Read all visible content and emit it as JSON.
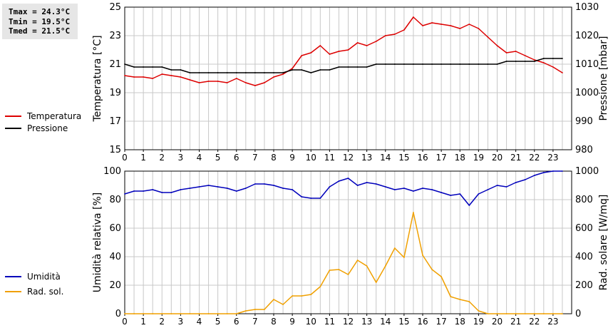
{
  "stats": {
    "tmax": "Tmax = 24.3°C",
    "tmin": "Tmin = 19.5°C",
    "tmed": "Tmed = 21.5°C"
  },
  "colors": {
    "temperatura": "#dd0000",
    "pressione": "#000000",
    "umidita": "#0000bb",
    "radsol": "#f0a000",
    "grid": "#c8c8c8"
  },
  "legend_top": [
    {
      "label": "Temperatura",
      "color": "#dd0000"
    },
    {
      "label": "Pressione",
      "color": "#000000"
    }
  ],
  "legend_bottom": [
    {
      "label": "Umidità",
      "color": "#0000bb"
    },
    {
      "label": "Rad. sol.",
      "color": "#f0a000"
    }
  ],
  "chart_data": [
    {
      "type": "line",
      "x_ticks": [
        "0",
        "1",
        "2",
        "3",
        "4",
        "5",
        "6",
        "7",
        "8",
        "9",
        "10",
        "11",
        "12",
        "13",
        "14",
        "15",
        "16",
        "17",
        "18",
        "19",
        "20",
        "21",
        "22",
        "23"
      ],
      "xlim": [
        0,
        24
      ],
      "y_left": {
        "label": "Temperatura [°C]",
        "ylim": [
          15,
          25
        ],
        "ticks": [
          "15",
          "17",
          "19",
          "21",
          "23",
          "25"
        ]
      },
      "y_right": {
        "label": "Pressione [mbar]",
        "ylim": [
          980,
          1030
        ],
        "ticks": [
          "980",
          "990",
          "1000",
          "1010",
          "1020",
          "1030"
        ]
      },
      "grid": true,
      "series": [
        {
          "name": "Temperatura",
          "axis": "left",
          "color": "#dd0000",
          "x": [
            0,
            0.5,
            1,
            1.5,
            2,
            2.5,
            3,
            3.5,
            4,
            4.5,
            5,
            5.5,
            6,
            6.5,
            7,
            7.5,
            8,
            8.5,
            9,
            9.5,
            10,
            10.5,
            11,
            11.5,
            12,
            12.5,
            13,
            13.5,
            14,
            14.5,
            15,
            15.5,
            16,
            16.5,
            17,
            17.5,
            18,
            18.5,
            19,
            19.5,
            20,
            20.5,
            21,
            21.5,
            22,
            22.5,
            23,
            23.5
          ],
          "y": [
            20.2,
            20.1,
            20.1,
            20.0,
            20.3,
            20.2,
            20.1,
            19.9,
            19.7,
            19.8,
            19.8,
            19.7,
            20.0,
            19.7,
            19.5,
            19.7,
            20.1,
            20.3,
            20.7,
            21.6,
            21.8,
            22.3,
            21.7,
            21.9,
            22.0,
            22.5,
            22.3,
            22.6,
            23.0,
            23.1,
            23.4,
            24.3,
            23.7,
            23.9,
            23.8,
            23.7,
            23.5,
            23.8,
            23.5,
            22.9,
            22.3,
            21.8,
            21.9,
            21.6,
            21.3,
            21.1,
            20.8,
            20.4
          ]
        },
        {
          "name": "Pressione",
          "axis": "right",
          "color": "#000000",
          "x": [
            0,
            0.5,
            1,
            1.5,
            2,
            2.5,
            3,
            3.5,
            4,
            4.5,
            5,
            5.5,
            6,
            6.5,
            7,
            7.5,
            8,
            8.5,
            9,
            9.5,
            10,
            10.5,
            11,
            11.5,
            12,
            12.5,
            13,
            13.5,
            14,
            14.5,
            15,
            15.5,
            16,
            16.5,
            17,
            17.5,
            18,
            18.5,
            19,
            19.5,
            20,
            20.5,
            21,
            21.5,
            22,
            22.5,
            23,
            23.5
          ],
          "y": [
            1010,
            1009,
            1009,
            1009,
            1009,
            1008,
            1008,
            1007,
            1007,
            1007,
            1007,
            1007,
            1007,
            1007,
            1007,
            1007,
            1007,
            1007,
            1008,
            1008,
            1007,
            1008,
            1008,
            1009,
            1009,
            1009,
            1009,
            1010,
            1010,
            1010,
            1010,
            1010,
            1010,
            1010,
            1010,
            1010,
            1010,
            1010,
            1010,
            1010,
            1010,
            1011,
            1011,
            1011,
            1011,
            1012,
            1012,
            1012
          ]
        }
      ]
    },
    {
      "type": "line",
      "x_ticks": [
        "0",
        "1",
        "2",
        "3",
        "4",
        "5",
        "6",
        "7",
        "8",
        "9",
        "10",
        "11",
        "12",
        "13",
        "14",
        "15",
        "16",
        "17",
        "18",
        "19",
        "20",
        "21",
        "22",
        "23"
      ],
      "xlim": [
        0,
        24
      ],
      "y_left": {
        "label": "Umidità relativa [%]",
        "ylim": [
          0,
          100
        ],
        "ticks": [
          "0",
          "20",
          "40",
          "60",
          "80",
          "100"
        ]
      },
      "y_right": {
        "label": "Rad. solare [W/mq]",
        "ylim": [
          0,
          1000
        ],
        "ticks": [
          "0",
          "200",
          "400",
          "600",
          "800",
          "1000"
        ]
      },
      "grid": true,
      "series": [
        {
          "name": "Umidità",
          "axis": "left",
          "color": "#0000bb",
          "x": [
            0,
            0.5,
            1,
            1.5,
            2,
            2.5,
            3,
            3.5,
            4,
            4.5,
            5,
            5.5,
            6,
            6.5,
            7,
            7.5,
            8,
            8.5,
            9,
            9.5,
            10,
            10.5,
            11,
            11.5,
            12,
            12.5,
            13,
            13.5,
            14,
            14.5,
            15,
            15.5,
            16,
            16.5,
            17,
            17.5,
            18,
            18.5,
            19,
            19.5,
            20,
            20.5,
            21,
            21.5,
            22,
            22.5,
            23,
            23.5
          ],
          "y": [
            84,
            86,
            86,
            87,
            85,
            85,
            87,
            88,
            89,
            90,
            89,
            88,
            86,
            88,
            91,
            91,
            90,
            88,
            87,
            82,
            81,
            81,
            89,
            93,
            95,
            90,
            92,
            91,
            89,
            87,
            88,
            86,
            88,
            87,
            85,
            83,
            84,
            76,
            84,
            87,
            90,
            89,
            92,
            94,
            97,
            99,
            100,
            100
          ]
        },
        {
          "name": "Rad. sol.",
          "axis": "right",
          "color": "#f0a000",
          "x": [
            0,
            0.5,
            1,
            1.5,
            2,
            2.5,
            3,
            3.5,
            4,
            4.5,
            5,
            5.5,
            6,
            6.5,
            7,
            7.5,
            8,
            8.5,
            9,
            9.5,
            10,
            10.5,
            11,
            11.5,
            12,
            12.5,
            13,
            13.5,
            14,
            14.5,
            15,
            15.5,
            16,
            16.5,
            17,
            17.5,
            18,
            18.5,
            19,
            19.5,
            20,
            20.5,
            21,
            21.5,
            22,
            22.5,
            23,
            23.5
          ],
          "y": [
            0,
            0,
            0,
            0,
            0,
            0,
            0,
            0,
            0,
            0,
            0,
            0,
            0,
            20,
            30,
            30,
            100,
            65,
            125,
            125,
            135,
            190,
            305,
            310,
            275,
            375,
            335,
            220,
            335,
            460,
            395,
            710,
            410,
            310,
            260,
            120,
            100,
            85,
            20,
            0,
            0,
            0,
            0,
            0,
            0,
            0,
            0,
            0
          ]
        }
      ]
    }
  ]
}
